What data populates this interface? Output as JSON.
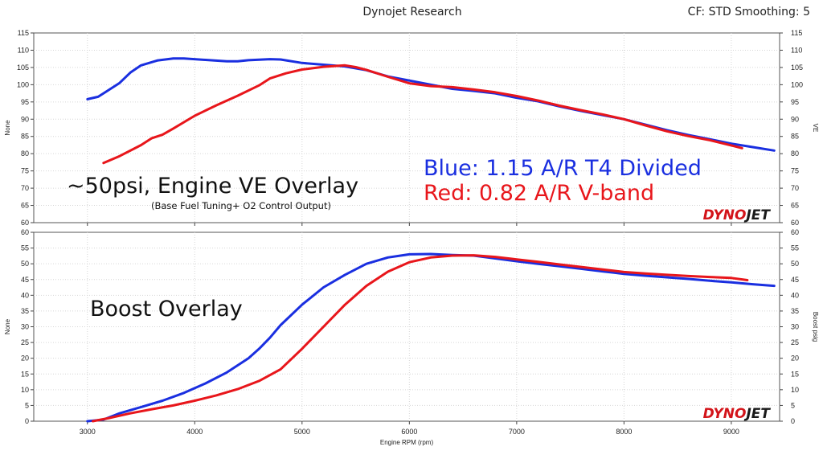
{
  "header": {
    "title": "Dynojet Research",
    "cf_label": "CF: STD Smoothing: 5"
  },
  "colors": {
    "blue": "#1a2fe0",
    "red": "#e8161b",
    "logo_red": "#d3141a"
  },
  "chart_data": [
    {
      "type": "line",
      "x_axis": {
        "label": "Engine RPM  (rpm)",
        "range": [
          2500,
          9450
        ],
        "ticks": [
          3000,
          4000,
          5000,
          6000,
          7000,
          8000,
          9000
        ]
      },
      "left_axis_label": "None",
      "right_axis_label": "VE",
      "ylim": [
        60,
        115
      ],
      "yticks": [
        60,
        65,
        70,
        75,
        80,
        85,
        90,
        95,
        100,
        105,
        110,
        115
      ],
      "grid": true,
      "annotation": "~50psi, Engine VE Overlay",
      "annotation_sub": "(Base Fuel Tuning+ O2 Control Output)",
      "logo": {
        "left": "DYNO",
        "right": "JET"
      },
      "legend": [
        {
          "text": "Blue: 1.15 A/R T4 Divided",
          "color": "#1a2fe0"
        },
        {
          "text": "Red:  0.82 A/R V-band",
          "color": "#e8161b"
        }
      ],
      "series": [
        {
          "color": "#1a2fe0",
          "points": [
            [
              3000,
              95.8
            ],
            [
              3100,
              96.5
            ],
            [
              3150,
              97.5
            ],
            [
              3300,
              100.5
            ],
            [
              3400,
              103.5
            ],
            [
              3500,
              105.6
            ],
            [
              3650,
              107
            ],
            [
              3800,
              107.6
            ],
            [
              3900,
              107.6
            ],
            [
              4100,
              107.2
            ],
            [
              4300,
              106.8
            ],
            [
              4400,
              106.8
            ],
            [
              4500,
              107.1
            ],
            [
              4700,
              107.4
            ],
            [
              4800,
              107.3
            ],
            [
              5000,
              106.3
            ],
            [
              5200,
              105.8
            ],
            [
              5400,
              105.3
            ],
            [
              5600,
              104.2
            ],
            [
              5800,
              102.4
            ],
            [
              6000,
              101.2
            ],
            [
              6200,
              100
            ],
            [
              6400,
              98.8
            ],
            [
              6600,
              98.2
            ],
            [
              6800,
              97.5
            ],
            [
              7000,
              96.2
            ],
            [
              7200,
              95.2
            ],
            [
              7400,
              93.7
            ],
            [
              7600,
              92.4
            ],
            [
              7800,
              91.2
            ],
            [
              8000,
              90
            ],
            [
              8200,
              88.4
            ],
            [
              8400,
              86.8
            ],
            [
              8600,
              85.4
            ],
            [
              8800,
              84.2
            ],
            [
              9000,
              82.9
            ],
            [
              9200,
              81.9
            ],
            [
              9400,
              80.9
            ]
          ]
        },
        {
          "color": "#e8161b",
          "points": [
            [
              3150,
              77.3
            ],
            [
              3300,
              79.3
            ],
            [
              3500,
              82.5
            ],
            [
              3600,
              84.5
            ],
            [
              3700,
              85.5
            ],
            [
              3800,
              87.3
            ],
            [
              4000,
              91
            ],
            [
              4200,
              94
            ],
            [
              4400,
              96.8
            ],
            [
              4600,
              99.8
            ],
            [
              4700,
              101.8
            ],
            [
              4850,
              103.3
            ],
            [
              5000,
              104.4
            ],
            [
              5200,
              105.2
            ],
            [
              5400,
              105.6
            ],
            [
              5500,
              105.1
            ],
            [
              5600,
              104.3
            ],
            [
              5800,
              102.3
            ],
            [
              6000,
              100.4
            ],
            [
              6200,
              99.6
            ],
            [
              6400,
              99.3
            ],
            [
              6600,
              98.6
            ],
            [
              6800,
              97.8
            ],
            [
              7000,
              96.7
            ],
            [
              7200,
              95.4
            ],
            [
              7400,
              93.9
            ],
            [
              7600,
              92.6
            ],
            [
              7800,
              91.4
            ],
            [
              8000,
              90
            ],
            [
              8200,
              88.2
            ],
            [
              8400,
              86.5
            ],
            [
              8600,
              85.1
            ],
            [
              8800,
              83.9
            ],
            [
              9000,
              82.4
            ],
            [
              9100,
              81.6
            ]
          ]
        }
      ]
    },
    {
      "type": "line",
      "x_axis": {
        "label": "Engine RPM  (rpm)",
        "range": [
          2500,
          9450
        ],
        "ticks": [
          3000,
          4000,
          5000,
          6000,
          7000,
          8000,
          9000
        ]
      },
      "left_axis_label": "None",
      "right_axis_label": "Boost psig",
      "ylim": [
        0,
        60
      ],
      "yticks": [
        0,
        5,
        10,
        15,
        20,
        25,
        30,
        35,
        40,
        45,
        50,
        55,
        60
      ],
      "grid": true,
      "annotation": "Boost Overlay",
      "logo": {
        "left": "DYNO",
        "right": "JET"
      },
      "series": [
        {
          "color": "#1a2fe0",
          "points": [
            [
              3000,
              0
            ],
            [
              3150,
              0.5
            ],
            [
              3300,
              2.5
            ],
            [
              3500,
              4.5
            ],
            [
              3700,
              6.5
            ],
            [
              3900,
              9
            ],
            [
              4100,
              12
            ],
            [
              4300,
              15.5
            ],
            [
              4500,
              20
            ],
            [
              4600,
              23
            ],
            [
              4700,
              26.5
            ],
            [
              4800,
              30.5
            ],
            [
              5000,
              37
            ],
            [
              5200,
              42.5
            ],
            [
              5400,
              46.5
            ],
            [
              5600,
              50
            ],
            [
              5800,
              52
            ],
            [
              6000,
              53
            ],
            [
              6200,
              53.1
            ],
            [
              6400,
              52.8
            ],
            [
              6600,
              52.6
            ],
            [
              6800,
              51.7
            ],
            [
              7000,
              50.8
            ],
            [
              7200,
              50
            ],
            [
              7400,
              49.2
            ],
            [
              7600,
              48.4
            ],
            [
              7800,
              47.6
            ],
            [
              8000,
              46.8
            ],
            [
              8200,
              46.2
            ],
            [
              8400,
              45.7
            ],
            [
              8600,
              45.2
            ],
            [
              8800,
              44.6
            ],
            [
              9000,
              44.1
            ],
            [
              9200,
              43.5
            ],
            [
              9400,
              43
            ]
          ]
        },
        {
          "color": "#e8161b",
          "points": [
            [
              3050,
              0
            ],
            [
              3200,
              1
            ],
            [
              3400,
              2.5
            ],
            [
              3600,
              3.8
            ],
            [
              3800,
              5
            ],
            [
              4000,
              6.5
            ],
            [
              4200,
              8.2
            ],
            [
              4400,
              10.2
            ],
            [
              4600,
              12.8
            ],
            [
              4800,
              16.5
            ],
            [
              5000,
              23
            ],
            [
              5200,
              30
            ],
            [
              5400,
              37
            ],
            [
              5600,
              43
            ],
            [
              5800,
              47.5
            ],
            [
              6000,
              50.5
            ],
            [
              6200,
              52
            ],
            [
              6400,
              52.6
            ],
            [
              6600,
              52.7
            ],
            [
              6800,
              52.2
            ],
            [
              7000,
              51.4
            ],
            [
              7200,
              50.6
            ],
            [
              7400,
              49.8
            ],
            [
              7600,
              49
            ],
            [
              7800,
              48.2
            ],
            [
              8000,
              47.4
            ],
            [
              8200,
              46.9
            ],
            [
              8400,
              46.5
            ],
            [
              8600,
              46.1
            ],
            [
              8800,
              45.8
            ],
            [
              9000,
              45.5
            ],
            [
              9150,
              44.8
            ]
          ]
        }
      ]
    }
  ]
}
